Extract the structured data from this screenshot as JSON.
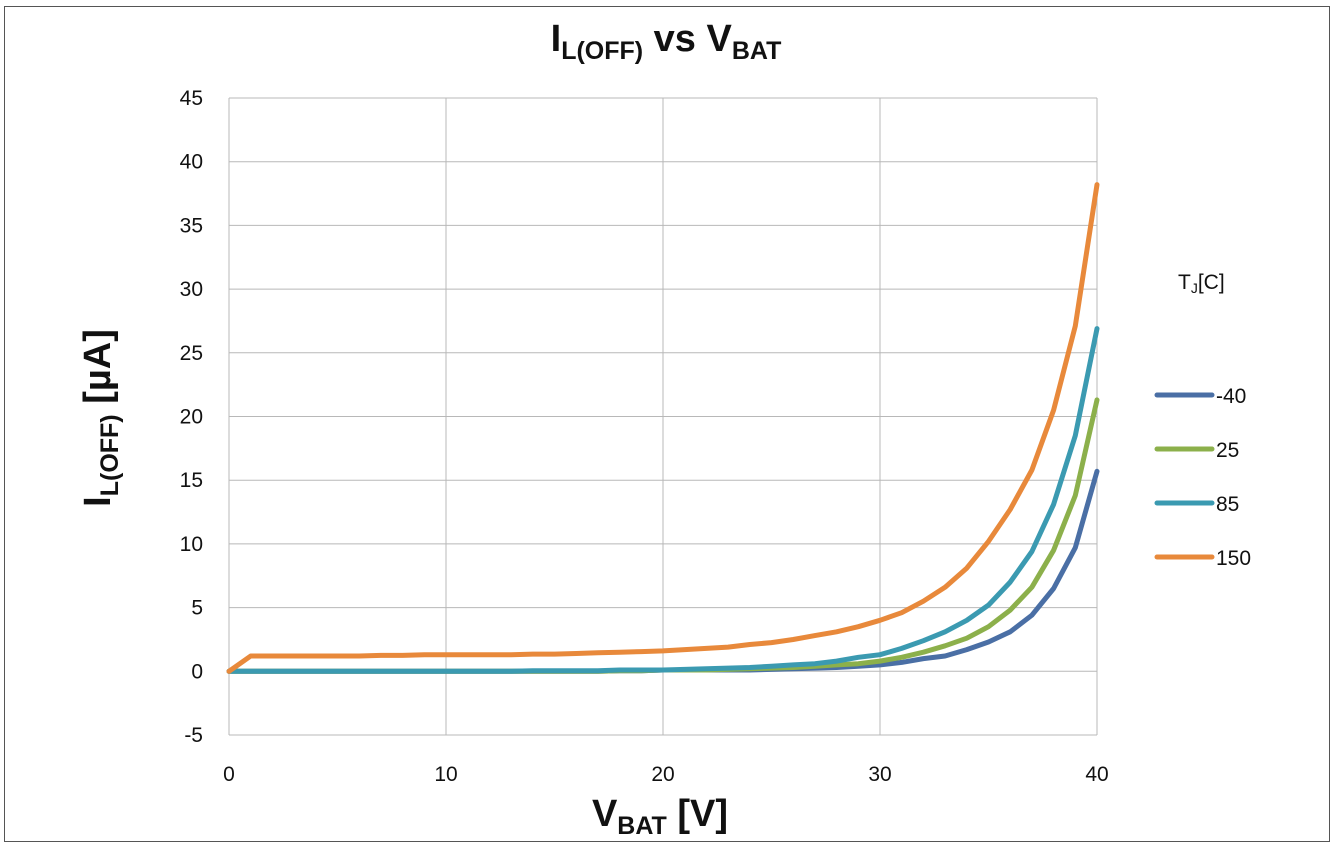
{
  "chart_data": {
    "type": "line",
    "title": {
      "main": "I",
      "sub": "L(OFF)",
      "mid": " vs V",
      "sub2": "BAT"
    },
    "xlabel": {
      "main": "V",
      "sub": "BAT",
      "rest": " [V]"
    },
    "ylabel": {
      "main": "I",
      "sub": "L(OFF)",
      "rest": " [µA]"
    },
    "xlim": [
      0,
      40
    ],
    "ylim": [
      -5,
      45
    ],
    "x_ticks": [
      0,
      10,
      20,
      30,
      40
    ],
    "y_ticks": [
      -5,
      0,
      5,
      10,
      15,
      20,
      25,
      30,
      35,
      40,
      45
    ],
    "grid": true,
    "legend": {
      "title_main": "T",
      "title_sub": "J",
      "title_rest": "[C]",
      "position": "right"
    },
    "x": [
      0,
      1,
      2,
      3,
      4,
      5,
      6,
      7,
      8,
      9,
      10,
      11,
      12,
      13,
      14,
      15,
      16,
      17,
      18,
      19,
      20,
      21,
      22,
      23,
      24,
      25,
      26,
      27,
      28,
      29,
      30,
      31,
      32,
      33,
      34,
      35,
      36,
      37,
      38,
      39,
      40
    ],
    "series": [
      {
        "name": "-40",
        "color": "#4a6fa5",
        "values": [
          0,
          0,
          0,
          0,
          0,
          0,
          0,
          0,
          0,
          0,
          0,
          0,
          0,
          0,
          0,
          0,
          0,
          0,
          0.05,
          0.05,
          0.1,
          0.1,
          0.1,
          0.1,
          0.1,
          0.15,
          0.2,
          0.25,
          0.3,
          0.4,
          0.5,
          0.7,
          1.0,
          1.2,
          1.7,
          2.3,
          3.1,
          4.4,
          6.5,
          9.7,
          15.7
        ]
      },
      {
        "name": "25",
        "color": "#8cb04b",
        "values": [
          0,
          0,
          0,
          0,
          0,
          0,
          0,
          0,
          0,
          0,
          0,
          0,
          0,
          0,
          0,
          0,
          0,
          0,
          0.05,
          0.05,
          0.1,
          0.1,
          0.1,
          0.15,
          0.2,
          0.25,
          0.3,
          0.4,
          0.5,
          0.6,
          0.8,
          1.1,
          1.5,
          2.0,
          2.6,
          3.5,
          4.8,
          6.6,
          9.5,
          13.8,
          21.3
        ]
      },
      {
        "name": "85",
        "color": "#3b9ab1",
        "values": [
          0,
          0,
          0,
          0,
          0,
          0,
          0,
          0,
          0,
          0,
          0,
          0,
          0,
          0,
          0.05,
          0.05,
          0.05,
          0.05,
          0.1,
          0.1,
          0.1,
          0.15,
          0.2,
          0.25,
          0.3,
          0.4,
          0.5,
          0.6,
          0.8,
          1.1,
          1.3,
          1.8,
          2.4,
          3.1,
          4.0,
          5.2,
          7.0,
          9.4,
          13.1,
          18.5,
          26.9
        ]
      },
      {
        "name": "150",
        "color": "#e8893b",
        "values": [
          0,
          1.2,
          1.2,
          1.2,
          1.2,
          1.2,
          1.2,
          1.25,
          1.25,
          1.3,
          1.3,
          1.3,
          1.3,
          1.3,
          1.35,
          1.35,
          1.4,
          1.45,
          1.5,
          1.55,
          1.6,
          1.7,
          1.8,
          1.9,
          2.1,
          2.25,
          2.5,
          2.8,
          3.1,
          3.5,
          4.0,
          4.6,
          5.5,
          6.6,
          8.1,
          10.2,
          12.7,
          15.8,
          20.5,
          27.1,
          38.2
        ]
      }
    ]
  }
}
